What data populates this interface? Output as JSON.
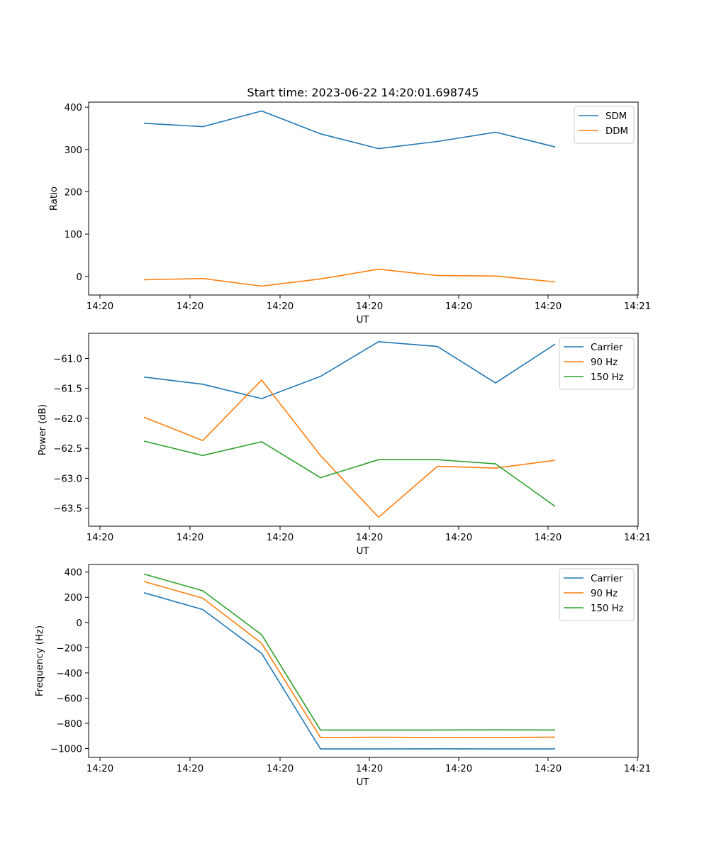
{
  "figure": {
    "title": "Start time: 2023-06-22 14:20:01.698745"
  },
  "chart_data": [
    {
      "type": "line",
      "xlabel": "UT",
      "ylabel": "Ratio",
      "x_tick_labels": [
        "14:20",
        "14:20",
        "14:20",
        "14:20",
        "14:20",
        "14:20",
        "14:21"
      ],
      "y_ticks": [
        0,
        100,
        200,
        300,
        400
      ],
      "y_tick_labels": [
        "0",
        "100",
        "200",
        "300",
        "400"
      ],
      "ylim": [
        -44,
        412
      ],
      "legend_position": "top-right",
      "series": [
        {
          "name": "SDM",
          "color": "#1f77b4",
          "values": [
            362,
            354,
            391,
            337,
            302,
            319,
            341,
            306
          ]
        },
        {
          "name": "DDM",
          "color": "#ff7f0e",
          "values": [
            -8,
            -5,
            -23,
            -6,
            17,
            2,
            1,
            -13
          ]
        }
      ]
    },
    {
      "type": "line",
      "xlabel": "UT",
      "ylabel": "Power (dB)",
      "x_tick_labels": [
        "14:20",
        "14:20",
        "14:20",
        "14:20",
        "14:20",
        "14:20",
        "14:21"
      ],
      "y_ticks": [
        -61.0,
        -61.5,
        -62.0,
        -62.5,
        -63.0,
        -63.5
      ],
      "y_tick_labels": [
        "−61.0",
        "−61.5",
        "−62.0",
        "−62.5",
        "−63.0",
        "−63.5"
      ],
      "ylim": [
        -63.8,
        -60.58
      ],
      "legend_position": "top-right",
      "series": [
        {
          "name": "Carrier",
          "color": "#1f77b4",
          "values": [
            -61.31,
            -61.43,
            -61.67,
            -61.3,
            -60.72,
            -60.8,
            -61.41,
            -60.76
          ]
        },
        {
          "name": "90 Hz",
          "color": "#ff7f0e",
          "values": [
            -61.98,
            -62.37,
            -61.36,
            -62.62,
            -63.65,
            -62.8,
            -62.83,
            -62.7
          ]
        },
        {
          "name": "150 Hz",
          "color": "#2ca02c",
          "values": [
            -62.38,
            -62.62,
            -62.39,
            -62.99,
            -62.69,
            -62.69,
            -62.76,
            -63.47
          ]
        }
      ]
    },
    {
      "type": "line",
      "xlabel": "UT",
      "ylabel": "Frequency (Hz)",
      "x_tick_labels": [
        "14:20",
        "14:20",
        "14:20",
        "14:20",
        "14:20",
        "14:20",
        "14:21"
      ],
      "y_ticks": [
        400,
        200,
        0,
        -200,
        -400,
        -600,
        -800,
        -1000
      ],
      "y_tick_labels": [
        "400",
        "200",
        "0",
        "−200",
        "−400",
        "−600",
        "−800",
        "−1000"
      ],
      "ylim": [
        -1070,
        460
      ],
      "legend_position": "top-right",
      "series": [
        {
          "name": "Carrier",
          "color": "#1f77b4",
          "values": [
            236,
            103,
            -245,
            -1003,
            -1003,
            -1002,
            -1003,
            -1003
          ]
        },
        {
          "name": "90 Hz",
          "color": "#ff7f0e",
          "values": [
            325,
            193,
            -165,
            -912,
            -910,
            -912,
            -912,
            -909
          ]
        },
        {
          "name": "150 Hz",
          "color": "#2ca02c",
          "values": [
            384,
            252,
            -97,
            -853,
            -853,
            -853,
            -852,
            -853
          ]
        }
      ]
    }
  ]
}
